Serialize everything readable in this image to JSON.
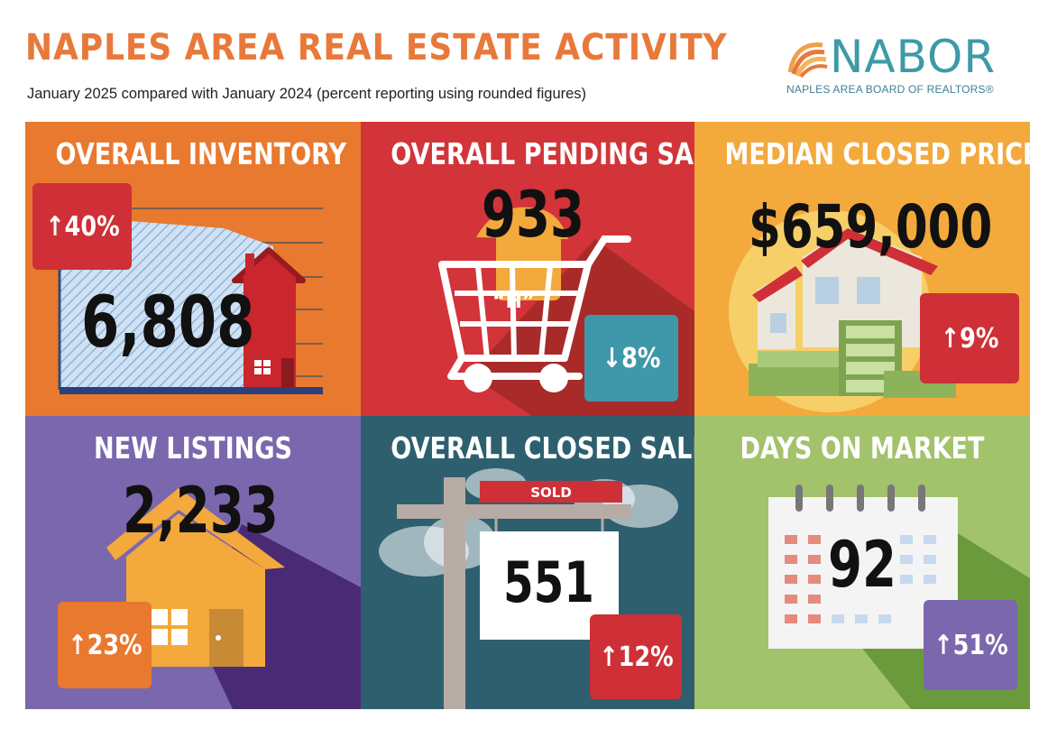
{
  "header": {
    "title": "NAPLES AREA REAL ESTATE ACTIVITY",
    "subtitle": "January 2025 compared with January 2024 (percent reporting using rounded figures)"
  },
  "logo": {
    "name": "NABOR",
    "tagline": "NAPLES AREA BOARD OF REALTORS®"
  },
  "tiles": [
    {
      "label": "OVERALL INVENTORY",
      "value": "6,808",
      "change": "40%",
      "direction": "up",
      "bg": "#e8792f",
      "badge": "#cf2f36"
    },
    {
      "label": "OVERALL PENDING SALES",
      "value": "933",
      "change": "8%",
      "direction": "down",
      "bg": "#d2343a",
      "badge": "#3e98a9"
    },
    {
      "label": "MEDIAN CLOSED PRICE",
      "value": "$659,000",
      "change": "9%",
      "direction": "up",
      "bg": "#f3a93c",
      "badge": "#cf2f36"
    },
    {
      "label": "NEW LISTINGS",
      "value": "2,233",
      "change": "23%",
      "direction": "up",
      "bg": "#7b67ad",
      "badge": "#e8792f"
    },
    {
      "label": "OVERALL CLOSED SALES",
      "value": "551",
      "change": "12%",
      "direction": "up",
      "bg": "#2e5f6f",
      "badge": "#cf2f36"
    },
    {
      "label": "DAYS ON MARKET",
      "value": "92",
      "change": "51%",
      "direction": "up",
      "bg": "#a2c26c",
      "badge": "#7b67ad"
    }
  ],
  "sold_sign": "SOLD",
  "cart_sign": "“H”",
  "arrows": {
    "up": "↑",
    "down": "↓"
  }
}
